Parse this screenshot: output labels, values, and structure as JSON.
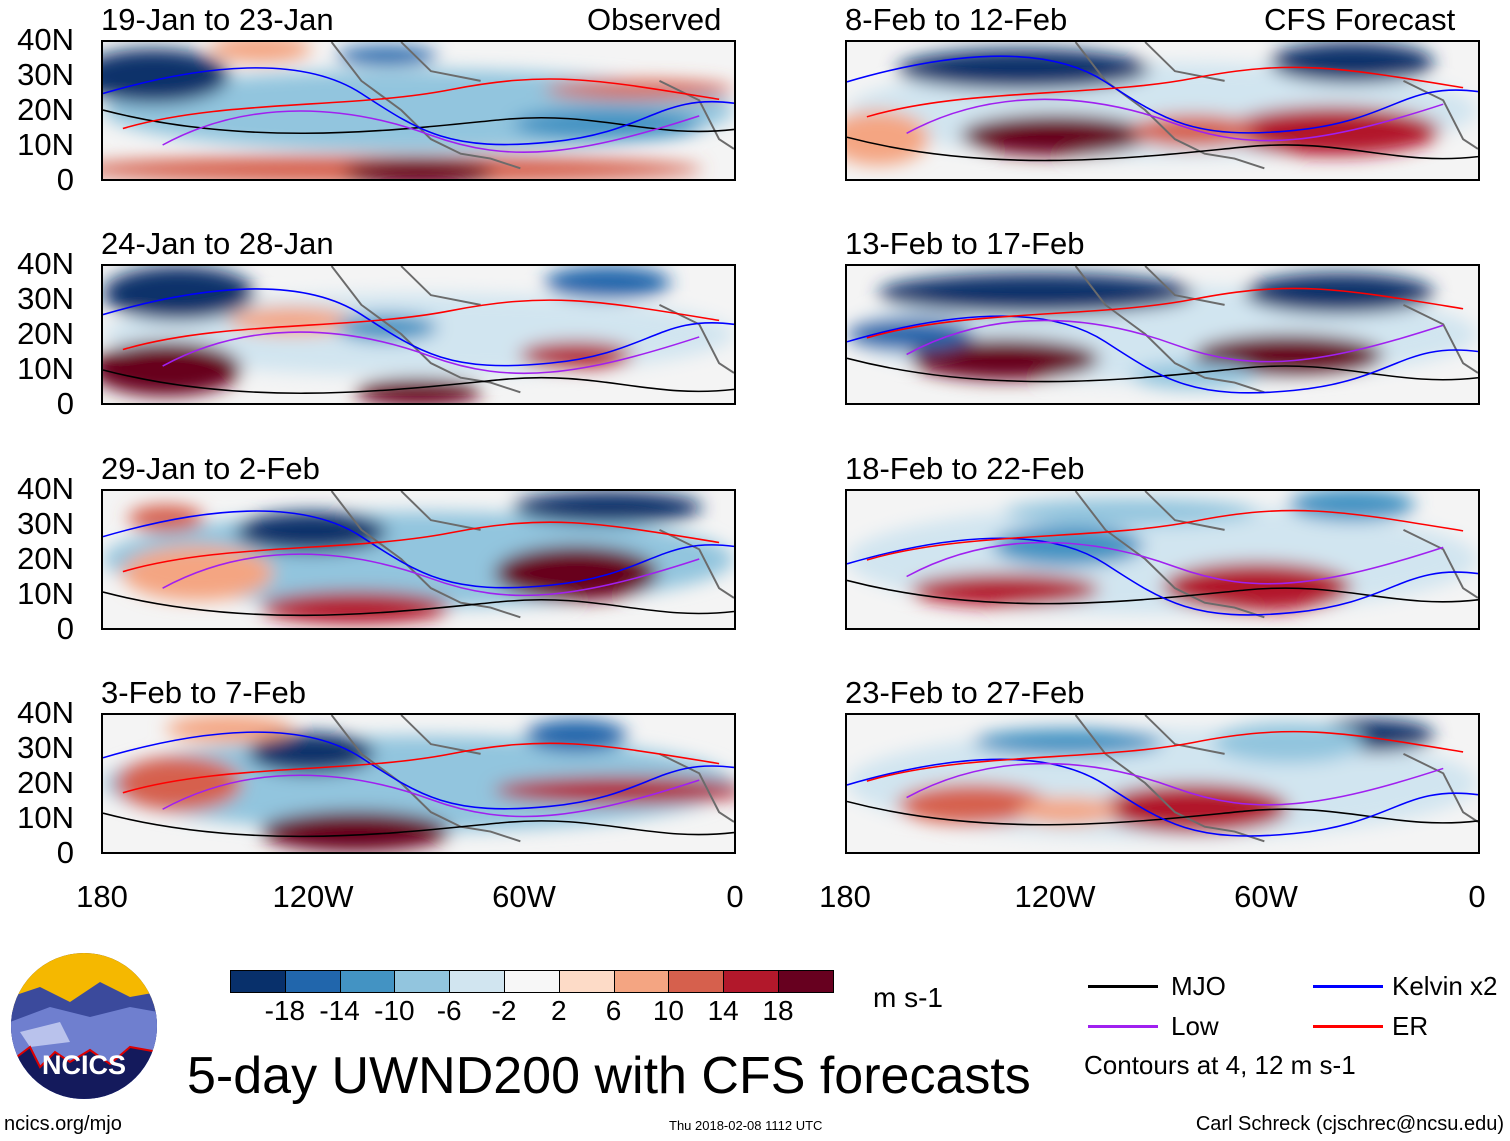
{
  "header": {
    "left_label": "Observed",
    "right_label": "CFS Forecast"
  },
  "panels": [
    {
      "title": "19-Jan to 23-Jan",
      "column": "observed"
    },
    {
      "title": "24-Jan to 28-Jan",
      "column": "observed"
    },
    {
      "title": "29-Jan to 2-Feb",
      "column": "observed"
    },
    {
      "title": "3-Feb to 7-Feb",
      "column": "observed"
    },
    {
      "title": "8-Feb to 12-Feb",
      "column": "forecast"
    },
    {
      "title": "13-Feb to 17-Feb",
      "column": "forecast"
    },
    {
      "title": "18-Feb to 22-Feb",
      "column": "forecast"
    },
    {
      "title": "23-Feb to 27-Feb",
      "column": "forecast"
    }
  ],
  "axes": {
    "y_ticks": [
      "40N",
      "30N",
      "20N",
      "10N",
      "0"
    ],
    "x_ticks": [
      "180",
      "120W",
      "60W",
      "0"
    ]
  },
  "colorbar": {
    "levels": [
      "-18",
      "-14",
      "-10",
      "-6",
      "-2",
      "2",
      "6",
      "10",
      "14",
      "18"
    ],
    "colors": [
      "#08306b",
      "#2166ac",
      "#4393c3",
      "#92c5de",
      "#d1e5f0",
      "#f7f7f7",
      "#fddbc7",
      "#f4a582",
      "#d6604d",
      "#b2182b",
      "#67001f"
    ],
    "units": "m s-1"
  },
  "legend": {
    "items": [
      {
        "label": "MJO",
        "color": "#000000"
      },
      {
        "label": "Kelvin x2",
        "color": "#0000ff"
      },
      {
        "label": "Low",
        "color": "#a020f0"
      },
      {
        "label": "ER",
        "color": "#ff0000"
      }
    ],
    "note": "Contours at 4, 12 m s-1"
  },
  "title": "5-day UWND200 with CFS forecasts",
  "logo_text": "NCICS",
  "footer": {
    "url": "ncics.org/mjo",
    "timestamp": "Thu 2018-02-08 1112 UTC",
    "author": "Carl Schreck (cjschrec@ncsu.edu)"
  }
}
